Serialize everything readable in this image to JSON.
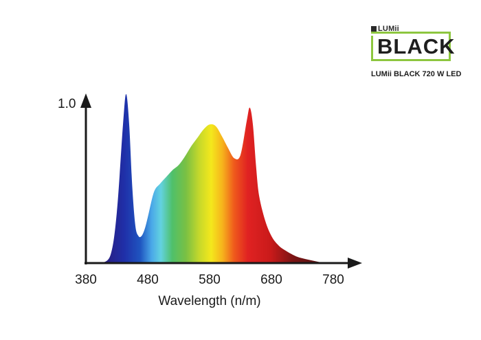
{
  "brand": {
    "small_label": "LUMii",
    "big_label": "BLACK",
    "model_label": "LUMii BLACK 720 W LED",
    "accent_color": "#8dc63f"
  },
  "chart_data": {
    "type": "area",
    "title": "",
    "xlabel": "Wavelength (n/m)",
    "ylabel": "",
    "x_ticks": [
      "380",
      "480",
      "580",
      "680",
      "780"
    ],
    "y_ticks": [
      "1.0"
    ],
    "xlim": [
      380,
      780
    ],
    "ylim": [
      0,
      1.0
    ],
    "grid": false,
    "fill": "visible-spectrum gradient",
    "series": [
      {
        "x": [
          405,
          420,
          430,
          440,
          445,
          450,
          455,
          460,
          465,
          470,
          475,
          480,
          490,
          500,
          510,
          520,
          530,
          540,
          550,
          560,
          570,
          580,
          590,
          600,
          610,
          620,
          630,
          640,
          645,
          650,
          655,
          660,
          670,
          680,
          690,
          700,
          720,
          740,
          760,
          775
        ],
        "values": [
          0.0,
          0.05,
          0.3,
          0.82,
          1.0,
          0.82,
          0.45,
          0.22,
          0.16,
          0.16,
          0.2,
          0.27,
          0.42,
          0.47,
          0.51,
          0.55,
          0.58,
          0.63,
          0.69,
          0.74,
          0.79,
          0.82,
          0.81,
          0.75,
          0.68,
          0.62,
          0.64,
          0.84,
          0.92,
          0.82,
          0.58,
          0.4,
          0.25,
          0.16,
          0.11,
          0.08,
          0.04,
          0.02,
          0.005,
          0.0
        ]
      }
    ]
  }
}
